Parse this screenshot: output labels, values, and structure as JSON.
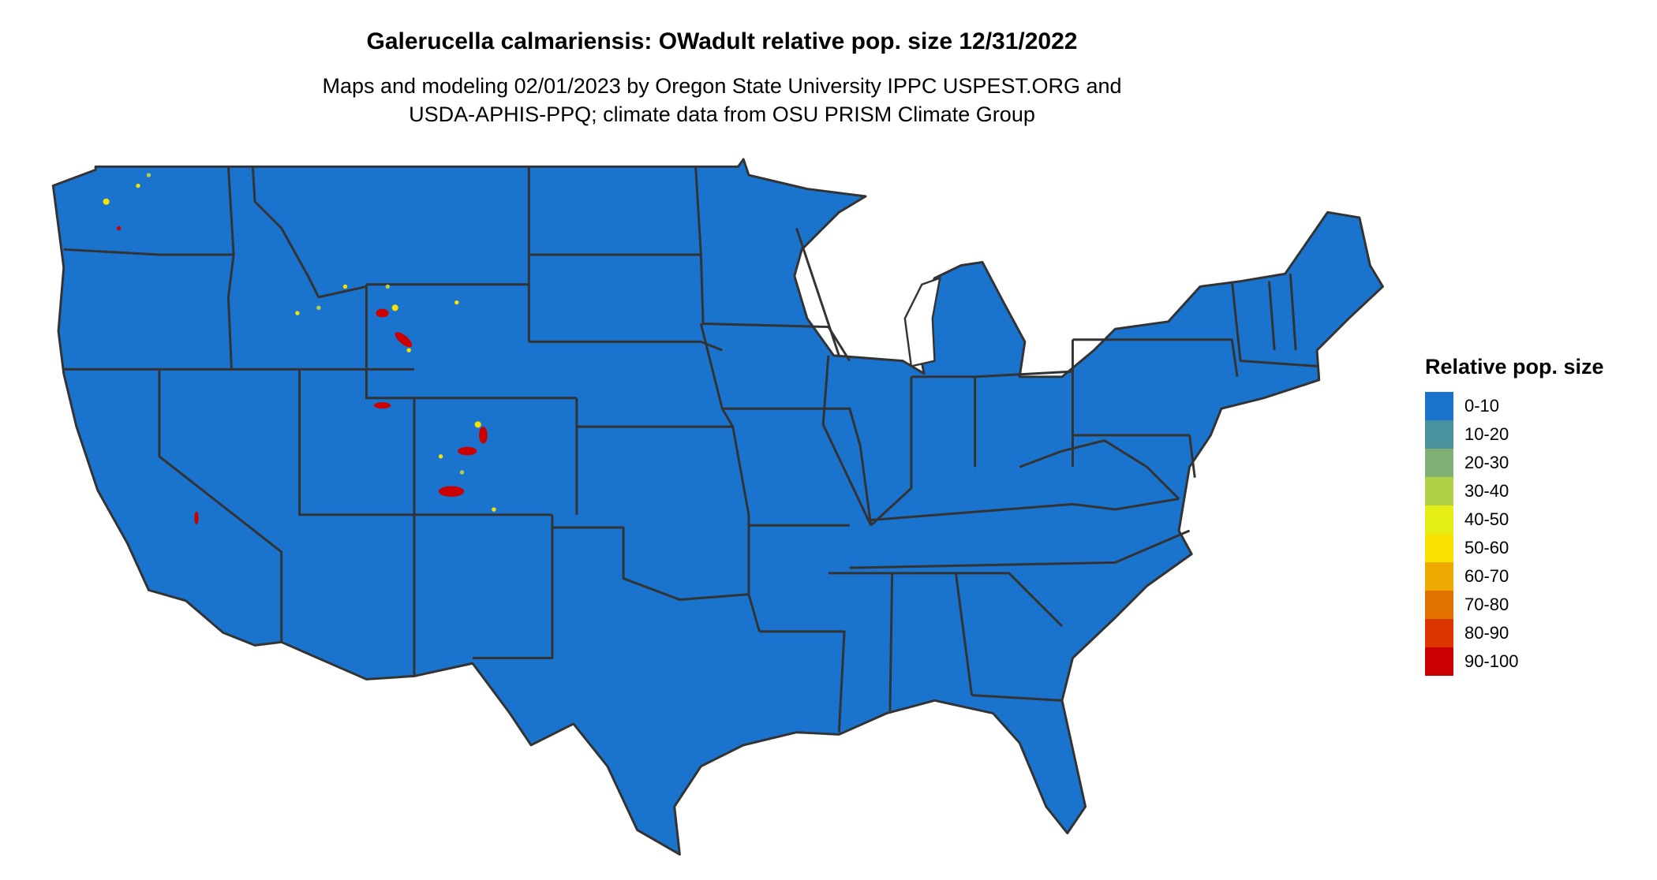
{
  "title": "Galerucella calmariensis: OWadult relative pop. size 12/31/2022",
  "subtitle_line1": "Maps and modeling 02/01/2023 by Oregon State University IPPC USPEST.ORG and",
  "subtitle_line2": "USDA-APHIS-PPQ; climate data from OSU PRISM Climate Group",
  "map": {
    "base_color": "#1a73cc",
    "border_color": "#333333"
  },
  "legend": {
    "title": "Relative pop. size",
    "items": [
      {
        "label": "0-10",
        "color": "#1a73cc"
      },
      {
        "label": "10-20",
        "color": "#4a919e"
      },
      {
        "label": "20-30",
        "color": "#7fb074"
      },
      {
        "label": "30-40",
        "color": "#b2d045"
      },
      {
        "label": "40-50",
        "color": "#e4ee14"
      },
      {
        "label": "50-60",
        "color": "#f8e000"
      },
      {
        "label": "60-70",
        "color": "#eeaa00"
      },
      {
        "label": "70-80",
        "color": "#e27200"
      },
      {
        "label": "80-90",
        "color": "#db3600"
      },
      {
        "label": "90-100",
        "color": "#cc0000"
      }
    ]
  }
}
